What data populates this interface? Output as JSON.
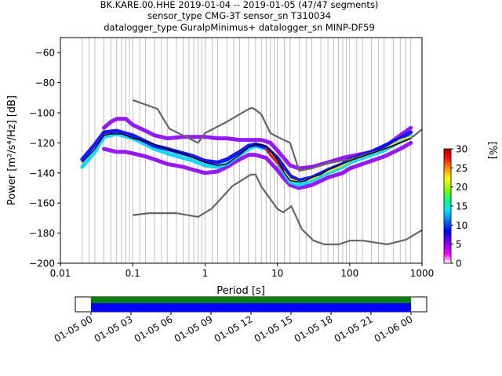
{
  "title_lines": [
    "BK.KARE.00.HHE   2019-01-04 -- 2019-01-05  (47/47 segments)",
    "sensor_type CMG-3T sensor_sn T310034",
    "datalogger_type GuralpMinimus+ datalogger_sn MINP-DF59"
  ],
  "chart_data": [
    {
      "type": "heatmap",
      "subtype": "probabilistic-power-spectral-density",
      "xlabel": "Period [s]",
      "ylabel": "Power [m²/s⁴/Hz] [dB]",
      "xscale": "log",
      "xlim": [
        0.01,
        1000
      ],
      "ylim": [
        -200,
        -50
      ],
      "x_ticks": [
        {
          "value": 0.01,
          "label": "0.01"
        },
        {
          "value": 0.1,
          "label": "0.1"
        },
        {
          "value": 1,
          "label": "1"
        },
        {
          "value": 10,
          "label": "10"
        },
        {
          "value": 100,
          "label": "100"
        },
        {
          "value": 1000,
          "label": "1000"
        }
      ],
      "y_ticks": [
        -60,
        -80,
        -100,
        -120,
        -140,
        -160,
        -180,
        -200
      ],
      "grid": "vertical, log-spaced",
      "vertical_period_lines": [
        0.02,
        0.025,
        0.03,
        0.04,
        0.05,
        0.06,
        0.07,
        0.08,
        0.09,
        0.1,
        0.125,
        0.15,
        0.2,
        0.25,
        0.3,
        0.4,
        0.5,
        0.6,
        0.7,
        0.8,
        0.9,
        1,
        1.25,
        1.5,
        2,
        2.5,
        3,
        4,
        5,
        6,
        7,
        8,
        9,
        10,
        12.5,
        15,
        20,
        25,
        30,
        40,
        50,
        60,
        70,
        80,
        90,
        100,
        125,
        150,
        200,
        250,
        300,
        400,
        500,
        600,
        700
      ],
      "colorbar": {
        "label": "[%]",
        "min": 0,
        "max": 30,
        "ticks": [
          0,
          5,
          10,
          15,
          20,
          25,
          30
        ],
        "colormap": "pqlx",
        "colors": [
          "#ffffff",
          "#ff00ff",
          "#8000ff",
          "#0000ff",
          "#0080ff",
          "#00e0ff",
          "#00ff80",
          "#80ff00",
          "#ffff00",
          "#ff8000",
          "#ff0000",
          "#a00000"
        ]
      },
      "density_rows": [
        {
          "name": "upper",
          "color": "#8b00ff",
          "x": [
            0.04,
            0.05,
            0.06,
            0.08,
            0.1,
            0.15,
            0.2,
            0.3,
            0.5,
            0.7,
            1,
            1.5,
            2,
            3,
            4,
            5,
            6,
            7,
            8,
            10,
            15,
            20,
            30,
            50,
            80,
            100,
            200,
            300,
            500,
            700
          ],
          "y": [
            -110,
            -106,
            -104,
            -104,
            -108,
            -112,
            -115,
            -117,
            -116,
            -116,
            -116,
            -117,
            -117,
            -118,
            -118,
            -118,
            -118,
            -119,
            -120,
            -125,
            -135,
            -137,
            -136,
            -133,
            -130,
            -129,
            -126,
            -123,
            -115,
            -110
          ]
        },
        {
          "name": "lower",
          "color": "#8b00ff",
          "x": [
            0.04,
            0.06,
            0.08,
            0.1,
            0.15,
            0.2,
            0.3,
            0.5,
            0.7,
            1,
            1.5,
            2,
            3,
            4,
            5,
            7,
            10,
            12,
            15,
            20,
            30,
            50,
            80,
            100,
            200,
            300,
            500,
            700
          ],
          "y": [
            -124,
            -126,
            -126,
            -127,
            -129,
            -131,
            -134,
            -136,
            -138,
            -140,
            -139,
            -136,
            -131,
            -128,
            -128,
            -130,
            -138,
            -143,
            -148,
            -150,
            -148,
            -143,
            -140,
            -137,
            -132,
            -129,
            -124,
            -120
          ]
        },
        {
          "name": "mid",
          "color": "#00d4ff",
          "x": [
            0.02,
            0.03,
            0.04,
            0.06,
            0.1,
            0.15,
            0.2,
            0.3,
            0.5,
            0.7,
            1,
            1.5,
            2,
            3,
            4,
            5,
            7,
            10,
            15,
            20,
            30,
            50,
            80,
            100,
            200,
            300,
            500,
            700
          ],
          "y": [
            -136,
            -126,
            -116,
            -114,
            -117,
            -121,
            -124,
            -127,
            -130,
            -132,
            -135,
            -136,
            -134,
            -128,
            -124,
            -122,
            -124,
            -133,
            -146,
            -148,
            -145,
            -140,
            -136,
            -133,
            -128,
            -125,
            -119,
            -116
          ]
        },
        {
          "name": "core",
          "color": "#0000ff",
          "x": [
            0.02,
            0.03,
            0.04,
            0.06,
            0.1,
            0.15,
            0.2,
            0.3,
            0.5,
            0.7,
            1,
            1.5,
            2,
            3,
            4,
            5,
            7,
            10,
            15,
            20,
            30,
            50,
            80,
            100,
            200,
            300,
            500,
            700
          ],
          "y": [
            -131,
            -121,
            -113,
            -112,
            -115,
            -119,
            -122,
            -124,
            -127,
            -129,
            -132,
            -133,
            -131,
            -126,
            -122,
            -121,
            -123,
            -130,
            -142,
            -145,
            -143,
            -138,
            -134,
            -131,
            -126,
            -122,
            -117,
            -113
          ]
        },
        {
          "name": "peak",
          "color": "#ffff00",
          "x": [
            8,
            10,
            15,
            20,
            30,
            50,
            80,
            100,
            200,
            300,
            500,
            700
          ],
          "y": [
            -127,
            -133,
            -144,
            -146,
            -144,
            -139,
            -135,
            -132,
            -127,
            -124,
            -118,
            -116
          ]
        },
        {
          "name": "edge",
          "color": "#ff0000",
          "x": [
            7,
            8,
            10,
            12
          ],
          "y": [
            -124,
            -128,
            -133,
            -138
          ]
        }
      ],
      "mode_curve": {
        "color": "#000000",
        "x": [
          0.02,
          0.025,
          0.03,
          0.04,
          0.05,
          0.06,
          0.07,
          0.08,
          0.1,
          0.15,
          0.2,
          0.3,
          0.5,
          0.7,
          1,
          1.5,
          2,
          3,
          4,
          5,
          6,
          7,
          8,
          10,
          12.5,
          15,
          20,
          25,
          30,
          40,
          50,
          70,
          100,
          150,
          200,
          300,
          400,
          500,
          700
        ],
        "y": [
          -133,
          -128,
          -124,
          -115,
          -114,
          -114,
          -114,
          -115,
          -117,
          -119,
          -121,
          -124,
          -127,
          -130,
          -133,
          -135,
          -134,
          -128,
          -123,
          -121,
          -121,
          -122,
          -125,
          -131,
          -140,
          -145,
          -146,
          -145,
          -143,
          -141,
          -138,
          -135,
          -132,
          -129,
          -127,
          -124,
          -122,
          -120,
          -117
        ]
      },
      "noise_models": [
        {
          "name": "NHNM",
          "color": "#666666",
          "x": [
            0.1,
            0.22,
            0.32,
            0.8,
            1,
            2,
            3,
            4,
            4.5,
            5,
            6,
            8,
            10,
            15,
            20,
            30,
            50,
            100,
            200,
            300,
            500,
            700,
            1000
          ],
          "y": [
            -91.5,
            -97.4,
            -110.5,
            -120,
            -113.5,
            -106,
            -101,
            -97.5,
            -96.7,
            -98,
            -101,
            -113.5,
            -116,
            -120,
            -138.5,
            -137,
            -133.5,
            -131,
            -126.5,
            -124,
            -120,
            -117,
            -111
          ]
        },
        {
          "name": "NLNM",
          "color": "#666666",
          "x": [
            0.1,
            0.17,
            0.4,
            0.8,
            1.24,
            2.4,
            4.3,
            5,
            6,
            10,
            12,
            15.6,
            21.9,
            31.6,
            45,
            70,
            101,
            154,
            328,
            600,
            1000
          ],
          "y": [
            -168,
            -166.7,
            -166.7,
            -169.2,
            -163.7,
            -148.6,
            -141.1,
            -141.1,
            -149,
            -163.8,
            -166.2,
            -162.1,
            -177.5,
            -185,
            -187.5,
            -187.5,
            -185,
            -185,
            -187.5,
            -184.4,
            -178
          ]
        }
      ]
    },
    {
      "type": "timeline",
      "tick_labels": [
        "01-05 00",
        "01-05 03",
        "01-05 06",
        "01-05 09",
        "01-05 12",
        "01-05 15",
        "01-05 18",
        "01-05 21",
        "01-06 00"
      ],
      "bars": [
        {
          "name": "coverage",
          "color": "#008000"
        },
        {
          "name": "processed",
          "color": "#0000ff"
        }
      ]
    }
  ]
}
